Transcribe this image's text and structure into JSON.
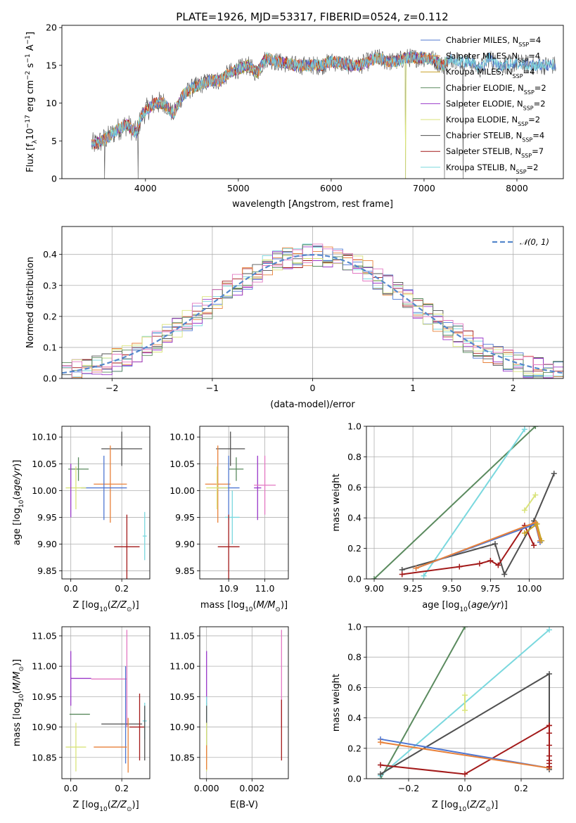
{
  "figure_title": "PLATE=1926, MJD=53317, FIBERID=0524, z=0.112",
  "colors": {
    "Chabrier MILES": "#4f77d2",
    "Salpeter MILES": "#e8813a",
    "Kroupa MILES": "#c9a227",
    "Chabrier ELODIE": "#5a8a5e",
    "Salpeter ELODIE": "#9a38c9",
    "Kroupa ELODIE": "#d9e37a",
    "Chabrier STELIB": "#505050",
    "Salpeter STELIB": "#a31a1a",
    "Kroupa STELIB": "#7ad8de",
    "pink": "#e378c2",
    "normal_curve": "#5588cc",
    "grid": "#b0b0b0"
  },
  "chart_data": [
    {
      "type": "line",
      "name": "spectrum",
      "xlabel": "wavelength [Angstrom, rest frame]",
      "ylabel": "Flux [f_λ 10^-17 erg cm^-2 s^-1 A^-1]",
      "xlim": [
        3100,
        8500
      ],
      "ylim": [
        0,
        20.3
      ],
      "xticks": [
        4000,
        5000,
        6000,
        7000,
        8000
      ],
      "yticks": [
        0,
        5,
        10,
        15,
        20
      ],
      "grid": false,
      "legend_position": "right",
      "series_labels": [
        "Chabrier MILES, N_SSP=4",
        "Salpeter MILES, N_SSP=4",
        "Kroupa MILES, N_SSP=4",
        "Chabrier ELODIE, N_SSP=2",
        "Salpeter ELODIE, N_SSP=2",
        "Kroupa ELODIE, N_SSP=2",
        "Chabrier STELIB, N_SSP=4",
        "Salpeter STELIB, N_SSP=7",
        "Kroupa STELIB, N_SSP=2"
      ],
      "continuum_points": [
        [
          3420,
          4.5
        ],
        [
          3500,
          4.8
        ],
        [
          3600,
          5.5
        ],
        [
          3700,
          6.5
        ],
        [
          3800,
          7.2
        ],
        [
          3900,
          6.0
        ],
        [
          3950,
          8.0
        ],
        [
          4000,
          9.0
        ],
        [
          4100,
          10.0
        ],
        [
          4200,
          10.0
        ],
        [
          4300,
          8.5
        ],
        [
          4400,
          11.0
        ],
        [
          4500,
          12.0
        ],
        [
          4600,
          12.5
        ],
        [
          4700,
          13.0
        ],
        [
          4800,
          13.0
        ],
        [
          4900,
          14.0
        ],
        [
          5000,
          14.5
        ],
        [
          5100,
          15.0
        ],
        [
          5200,
          14.0
        ],
        [
          5300,
          16.0
        ],
        [
          5400,
          15.5
        ],
        [
          5500,
          15.3
        ],
        [
          5600,
          15.0
        ],
        [
          5700,
          15.0
        ],
        [
          5800,
          15.0
        ],
        [
          5900,
          15.0
        ],
        [
          6000,
          15.5
        ],
        [
          6100,
          15.3
        ],
        [
          6200,
          15.0
        ],
        [
          6300,
          15.0
        ],
        [
          6400,
          15.5
        ],
        [
          6500,
          16.0
        ],
        [
          6600,
          15.5
        ],
        [
          6700,
          15.5
        ],
        [
          6800,
          16.0
        ],
        [
          6900,
          16.0
        ],
        [
          7000,
          16.0
        ],
        [
          7100,
          15.8
        ],
        [
          7200,
          15.0
        ],
        [
          7300,
          16.0
        ],
        [
          7400,
          15.5
        ],
        [
          7500,
          15.5
        ],
        [
          7600,
          14.5
        ],
        [
          7700,
          16.0
        ],
        [
          7800,
          15.0
        ],
        [
          8000,
          15.3
        ],
        [
          8200,
          15.0
        ],
        [
          8400,
          15.0
        ]
      ],
      "dips_to_zero": [
        3560,
        3920,
        6800,
        7220,
        7420
      ]
    },
    {
      "type": "line",
      "name": "residual_histogram",
      "xlabel": "(data-model)/error",
      "ylabel": "Normed distribution",
      "xlim": [
        -2.5,
        2.5
      ],
      "ylim": [
        0,
        0.49
      ],
      "xticks": [
        -2,
        -1,
        0,
        1,
        2
      ],
      "yticks": [
        0.0,
        0.1,
        0.2,
        0.3,
        0.4
      ],
      "grid": true,
      "legend": "𝒩(0, 1)",
      "legend_position": "top-right",
      "bin_width": 0.1
    },
    {
      "type": "scatter",
      "name": "age_vs_Z",
      "xlabel": "Z [log10(Z/Z⊙)]",
      "ylabel": "age  [log10(age/yr)]",
      "xlim": [
        -0.035,
        0.31
      ],
      "ylim": [
        9.835,
        10.12
      ],
      "xticks": [
        0.0,
        0.2
      ],
      "yticks": [
        9.85,
        9.9,
        9.95,
        10.0,
        10.05,
        10.1
      ],
      "grid": true,
      "points": [
        {
          "c": "Chabrier STELIB",
          "x": 0.2,
          "y": 10.078,
          "xe": 0.08,
          "ye": 0.032
        },
        {
          "c": "Chabrier ELODIE",
          "x": 0.03,
          "y": 10.04,
          "xe": 0.04,
          "ye": 0.022
        },
        {
          "c": "Salpeter MILES",
          "x": 0.155,
          "y": 10.012,
          "xe": 0.065,
          "ye": 0.072
        },
        {
          "c": "Chabrier MILES",
          "x": 0.13,
          "y": 10.005,
          "xe": 0.09,
          "ye": 0.06
        },
        {
          "c": "Kroupa ELODIE",
          "x": 0.02,
          "y": 10.005,
          "xe": 0.04,
          "ye": 0.04
        },
        {
          "c": "Salpeter ELODIE",
          "x": 0.0,
          "y": 10.0,
          "xe": 0.0,
          "ye": 0.05
        },
        {
          "c": "Kroupa STELIB",
          "x": 0.29,
          "y": 9.915,
          "xe": 0.008,
          "ye": 0.045
        },
        {
          "c": "Salpeter STELIB",
          "x": 0.22,
          "y": 9.895,
          "xe": 0.05,
          "ye": 0.06
        }
      ]
    },
    {
      "type": "scatter",
      "name": "age_vs_mass",
      "xlabel": "mass [log10(M/M⊙)]",
      "ylabel": "",
      "xlim": [
        10.82,
        11.065
      ],
      "ylim": [
        9.835,
        10.12
      ],
      "xticks": [
        10.9,
        11.0
      ],
      "yticks": [
        9.85,
        9.9,
        9.95,
        10.0,
        10.05,
        10.1
      ],
      "grid": true,
      "points": [
        {
          "c": "Chabrier STELIB",
          "x": 10.905,
          "y": 10.078,
          "xe": 0.04,
          "ye": 0.032
        },
        {
          "c": "Chabrier ELODIE",
          "x": 10.921,
          "y": 10.04,
          "xe": 0.02,
          "ye": 0.022
        },
        {
          "c": "Salpeter MILES",
          "x": 10.87,
          "y": 10.012,
          "xe": 0.035,
          "ye": 0.072
        },
        {
          "c": "Chabrier MILES",
          "x": 10.9,
          "y": 10.005,
          "xe": 0.03,
          "ye": 0.06
        },
        {
          "c": "Kroupa ELODIE",
          "x": 10.868,
          "y": 10.005,
          "xe": 0.03,
          "ye": 0.04
        },
        {
          "c": "Salpeter ELODIE",
          "x": 10.98,
          "y": 10.005,
          "xe": 0.01,
          "ye": 0.06
        },
        {
          "c": "pink",
          "x": 11.0,
          "y": 10.01,
          "xe": 0.03,
          "ye": 0.055
        },
        {
          "c": "Kroupa STELIB",
          "x": 10.91,
          "y": 9.95,
          "xe": 0.02,
          "ye": 0.05
        },
        {
          "c": "Salpeter STELIB",
          "x": 10.9,
          "y": 9.895,
          "xe": 0.03,
          "ye": 0.06
        }
      ]
    },
    {
      "type": "line",
      "name": "mass_weight_vs_age",
      "xlabel": "age  [log10(age/yr)]",
      "ylabel": "mass weight",
      "xlim": [
        8.95,
        10.22
      ],
      "ylim": [
        0,
        1.0
      ],
      "xticks": [
        9.0,
        9.25,
        9.5,
        9.75,
        10.0
      ],
      "yticks": [
        0.0,
        0.2,
        0.4,
        0.6,
        0.8,
        1.0
      ],
      "grid": true,
      "series": [
        {
          "c": "Chabrier ELODIE",
          "x": [
            9.0,
            10.04
          ],
          "y": [
            0.0,
            1.0
          ]
        },
        {
          "c": "Kroupa STELIB",
          "x": [
            9.32,
            9.97
          ],
          "y": [
            0.02,
            0.98
          ]
        },
        {
          "c": "Chabrier STELIB",
          "x": [
            9.18,
            9.78,
            9.84,
            10.03,
            10.16
          ],
          "y": [
            0.06,
            0.23,
            0.03,
            0.38,
            0.69
          ]
        },
        {
          "c": "Salpeter STELIB",
          "x": [
            9.18,
            9.55,
            9.68,
            9.75,
            9.8,
            9.97,
            10.03
          ],
          "y": [
            0.03,
            0.08,
            0.1,
            0.12,
            0.09,
            0.35,
            0.22
          ]
        },
        {
          "c": "Chabrier MILES",
          "x": [
            9.27,
            10.04,
            10.07
          ],
          "y": [
            0.07,
            0.36,
            0.24
          ]
        },
        {
          "c": "Salpeter MILES",
          "x": [
            9.27,
            10.04,
            10.07
          ],
          "y": [
            0.07,
            0.37,
            0.25
          ]
        },
        {
          "c": "Kroupa MILES",
          "x": [
            9.97,
            10.05,
            10.08
          ],
          "y": [
            0.3,
            0.36,
            0.25
          ]
        },
        {
          "c": "Kroupa ELODIE",
          "x": [
            9.97,
            10.04
          ],
          "y": [
            0.45,
            0.55
          ]
        }
      ]
    },
    {
      "type": "scatter",
      "name": "mass_vs_Z",
      "xlabel": "Z [log10(Z/Z⊙)]",
      "ylabel": "mass [log10(M/M⊙)]",
      "xlim": [
        -0.035,
        0.31
      ],
      "ylim": [
        10.815,
        11.065
      ],
      "xticks": [
        0.0,
        0.2
      ],
      "yticks": [
        10.85,
        10.9,
        10.95,
        11.0,
        11.05
      ],
      "grid": true,
      "points": [
        {
          "c": "Salpeter ELODIE",
          "x": 0.0,
          "y": 10.98,
          "xe": 0.0,
          "ye": 0.045
        },
        {
          "c": "Salpeter ELODIE",
          "x": 0.04,
          "y": 10.98,
          "xe": 0.04,
          "ye": 0.0
        },
        {
          "c": "pink",
          "x": 0.15,
          "y": 10.979,
          "xe": 0.07,
          "ye": 0.0
        },
        {
          "c": "pink",
          "x": 0.22,
          "y": 10.98,
          "xe": 0.0,
          "ye": 0.08
        },
        {
          "c": "Chabrier ELODIE",
          "x": 0.035,
          "y": 10.921,
          "xe": 0.04,
          "ye": 0.0
        },
        {
          "c": "Chabrier STELIB",
          "x": 0.2,
          "y": 10.905,
          "xe": 0.08,
          "ye": 0.0
        },
        {
          "c": "Salpeter STELIB",
          "x": 0.26,
          "y": 10.9,
          "xe": 0.03,
          "ye": 0.0
        },
        {
          "c": "Salpeter STELIB",
          "x": 0.27,
          "y": 10.9,
          "xe": 0.0,
          "ye": 0.055
        },
        {
          "c": "Kroupa STELIB",
          "x": 0.29,
          "y": 10.91,
          "xe": 0.008,
          "ye": 0.03
        },
        {
          "c": "Chabrier STELIB",
          "x": 0.29,
          "y": 10.89,
          "xe": 0.0,
          "ye": 0.045
        },
        {
          "c": "Chabrier MILES",
          "x": 0.215,
          "y": 10.92,
          "xe": 0.0,
          "ye": 0.08
        },
        {
          "c": "Salpeter MILES",
          "x": 0.155,
          "y": 10.867,
          "xe": 0.065,
          "ye": 0.0
        },
        {
          "c": "Salpeter MILES",
          "x": 0.225,
          "y": 10.87,
          "xe": 0.0,
          "ye": 0.045
        },
        {
          "c": "Kroupa ELODIE",
          "x": 0.02,
          "y": 10.867,
          "xe": 0.04,
          "ye": 0.04
        }
      ]
    },
    {
      "type": "scatter",
      "name": "mass_vs_EBV",
      "xlabel": "E(B-V)",
      "ylabel": "",
      "xlim": [
        -0.0003,
        0.0036
      ],
      "ylim": [
        10.815,
        11.065
      ],
      "xticks": [
        0.0,
        0.002
      ],
      "yticks": [
        10.85,
        10.9,
        10.95,
        11.0,
        11.05
      ],
      "grid": true,
      "points": [
        {
          "c": "Salpeter ELODIE",
          "x": 0.0,
          "y": 10.98,
          "xe": 0,
          "ye": 0.045
        },
        {
          "c": "Chabrier ELODIE",
          "x": 0.0,
          "y": 10.92,
          "xe": 0,
          "ye": 0.02
        },
        {
          "c": "Kroupa STELIB",
          "x": 0.0,
          "y": 10.91,
          "xe": 0,
          "ye": 0.04
        },
        {
          "c": "Chabrier STELIB",
          "x": 0.0,
          "y": 10.89,
          "xe": 0,
          "ye": 0.045
        },
        {
          "c": "Kroupa ELODIE",
          "x": 0.0,
          "y": 10.867,
          "xe": 0,
          "ye": 0.04
        },
        {
          "c": "Salpeter MILES",
          "x": 0.0,
          "y": 10.85,
          "xe": 0,
          "ye": 0.02
        },
        {
          "c": "pink",
          "x": 0.0033,
          "y": 10.98,
          "xe": 0,
          "ye": 0.08
        },
        {
          "c": "Salpeter STELIB",
          "x": 0.0033,
          "y": 10.895,
          "xe": 0,
          "ye": 0.05
        }
      ]
    },
    {
      "type": "line",
      "name": "mass_weight_vs_Z",
      "xlabel": "Z [log10(Z/Z⊙)]",
      "ylabel": "mass weight",
      "xlim": [
        -0.35,
        0.35
      ],
      "ylim": [
        0,
        1.0
      ],
      "xticks": [
        -0.2,
        0.0,
        0.2
      ],
      "yticks": [
        0.0,
        0.2,
        0.4,
        0.6,
        0.8,
        1.0
      ],
      "grid": true,
      "series": [
        {
          "c": "Chabrier ELODIE",
          "x": [
            -0.3,
            0.0
          ],
          "y": [
            0.0,
            1.0
          ]
        },
        {
          "c": "Kroupa STELIB",
          "x": [
            -0.3,
            0.3
          ],
          "y": [
            0.02,
            0.98
          ]
        },
        {
          "c": "Chabrier STELIB",
          "x": [
            -0.3,
            0.3,
            0.3
          ],
          "y": [
            0.03,
            0.69,
            0.06
          ]
        },
        {
          "c": "Salpeter STELIB",
          "x": [
            -0.3,
            0.0,
            0.3,
            0.3
          ],
          "y": [
            0.09,
            0.03,
            0.35,
            0.08
          ]
        },
        {
          "c": "Chabrier MILES",
          "x": [
            -0.3,
            0.3
          ],
          "y": [
            0.26,
            0.07
          ]
        },
        {
          "c": "Salpeter MILES",
          "x": [
            -0.3,
            0.3
          ],
          "y": [
            0.24,
            0.07
          ]
        },
        {
          "c": "Kroupa ELODIE",
          "x": [
            0.0,
            0.0
          ],
          "y": [
            0.45,
            0.55
          ]
        }
      ],
      "stacked_markers": {
        "x": 0.3,
        "y": [
          0.08,
          0.1,
          0.12,
          0.15,
          0.22,
          0.3,
          0.35
        ]
      }
    }
  ]
}
